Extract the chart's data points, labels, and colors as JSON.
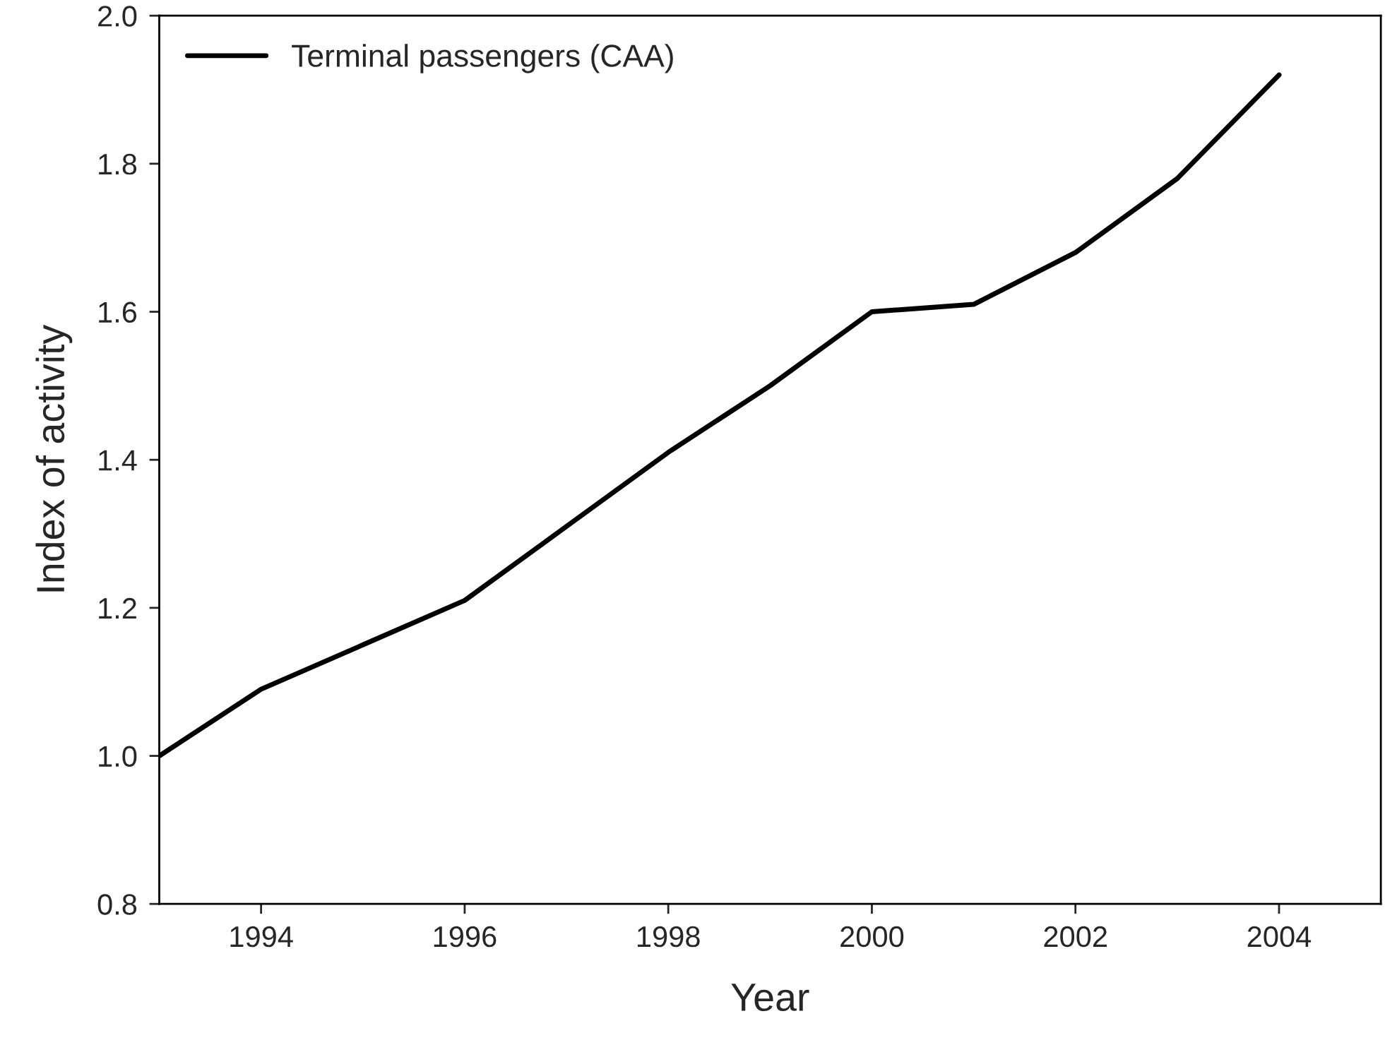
{
  "chart_data": {
    "type": "line",
    "xlabel": "Year",
    "ylabel": "Index of activity",
    "x": [
      1993,
      1994,
      1995,
      1996,
      1997,
      1998,
      1999,
      2000,
      2001,
      2002,
      2003,
      2004
    ],
    "series": [
      {
        "name": "Terminal passengers (CAA)",
        "color": "#000000",
        "values": [
          1.0,
          1.09,
          1.15,
          1.21,
          1.31,
          1.41,
          1.5,
          1.6,
          1.61,
          1.68,
          1.78,
          1.92
        ]
      }
    ],
    "xlim": [
      1993,
      2005
    ],
    "xticks": [
      1994,
      1996,
      1998,
      2000,
      2002,
      2004
    ],
    "ylim": [
      0.8,
      2.0
    ],
    "yticks": [
      {
        "value": 0.8,
        "label": "0.8"
      },
      {
        "value": 1.0,
        "label": "1.0"
      },
      {
        "value": 1.2,
        "label": "1.2"
      },
      {
        "value": 1.4,
        "label": "1.4"
      },
      {
        "value": 1.6,
        "label": "1.6"
      },
      {
        "value": 1.8,
        "label": "1.8"
      },
      {
        "value": 2.0,
        "label": "2.0"
      }
    ],
    "grid": false,
    "legend": "top left",
    "marker": "none",
    "line_style": "solid"
  }
}
